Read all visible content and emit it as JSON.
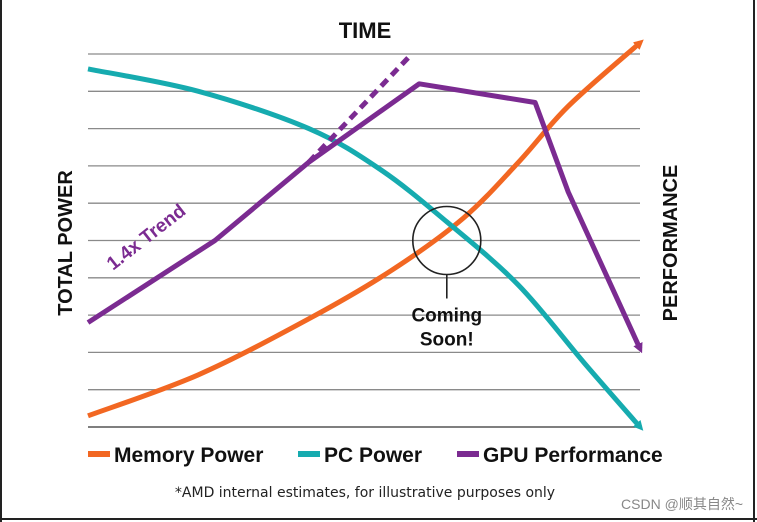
{
  "colors": {
    "memory": "#F26722",
    "pc": "#16ABAF",
    "gpu": "#7B2B91",
    "grid": "#8a8a8a",
    "text": "#111111"
  },
  "chart_data": {
    "type": "line",
    "title": "TIME",
    "ylabel_left": "TOTAL POWER",
    "ylabel_right": "PERFORMANCE",
    "xlim": [
      0,
      10
    ],
    "ylim": [
      0,
      10
    ],
    "gridlines": [
      1,
      2,
      3,
      4,
      5,
      6,
      7,
      8,
      9,
      10
    ],
    "series": [
      {
        "key": "memory",
        "name": "Memory Power",
        "x": [
          0,
          2,
          4,
          5.5,
          6.8,
          7.8,
          8.7,
          10
        ],
        "y": [
          0.3,
          1.4,
          2.9,
          4.2,
          5.6,
          7.1,
          8.6,
          10.3
        ],
        "end_arrow": true
      },
      {
        "key": "pc",
        "name": "PC Power",
        "x": [
          0,
          2,
          4,
          5.3,
          6.5,
          7.8,
          9,
          10
        ],
        "y": [
          9.6,
          9.0,
          8.0,
          6.9,
          5.5,
          3.8,
          1.7,
          0
        ]
      },
      {
        "key": "gpu",
        "name": "GPU Performance",
        "x": [
          0,
          2.3,
          4,
          6,
          8.1,
          8.7,
          10
        ],
        "y": [
          2.8,
          5.0,
          7.1,
          9.2,
          8.7,
          6.3,
          2.1
        ],
        "end_arrow": true
      }
    ],
    "trend": {
      "label": "1.4x Trend",
      "x": [
        4,
        5.8
      ],
      "y": [
        7.1,
        9.9
      ]
    },
    "annotation": {
      "line1": "Coming",
      "line2": "Soon!",
      "x": 6.5,
      "y": 5.0
    },
    "footnote": "*AMD internal estimates, for illustrative purposes only"
  },
  "watermark": "CSDN @顺其自然~"
}
